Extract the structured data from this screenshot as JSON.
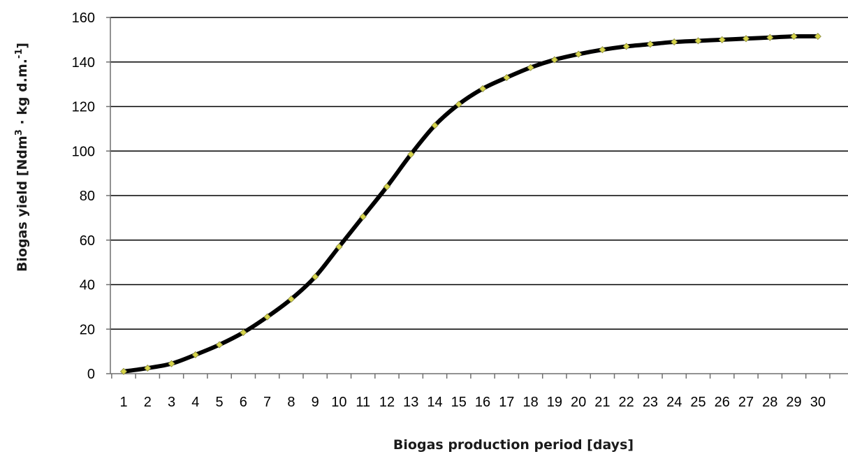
{
  "chart_data": {
    "type": "line",
    "title": "",
    "xlabel": "Biogas production period [days]",
    "ylabel": {
      "part1": "Biogas yield [Ndm",
      "sup1": "3",
      "part2": " · kg d.m.",
      "sup2": "-1",
      "part3": "]"
    },
    "x": [
      1,
      2,
      3,
      4,
      5,
      6,
      7,
      8,
      9,
      10,
      11,
      12,
      13,
      14,
      15,
      16,
      17,
      18,
      19,
      20,
      21,
      22,
      23,
      24,
      25,
      26,
      27,
      28,
      29,
      30
    ],
    "series": [
      {
        "values": [
          1,
          2.5,
          4.5,
          8.5,
          13,
          18.5,
          25.5,
          33.5,
          43.5,
          57,
          70.5,
          84,
          98.5,
          111.5,
          121,
          128,
          133,
          137.5,
          141,
          143.5,
          145.5,
          147,
          148,
          149,
          149.5,
          150,
          150.5,
          151,
          151.5,
          151.5
        ],
        "line_color": "#000000",
        "marker_color": "#d6d44a"
      }
    ],
    "ylim": [
      0,
      160
    ],
    "yticks": [
      0,
      20,
      40,
      60,
      80,
      100,
      120,
      140,
      160
    ],
    "xticks": [
      "1",
      "2",
      "3",
      "4",
      "5",
      "6",
      "7",
      "8",
      "9",
      "10",
      "11",
      "12",
      "13",
      "14",
      "15",
      "16",
      "17",
      "18",
      "19",
      "20",
      "21",
      "22",
      "23",
      "24",
      "25",
      "26",
      "27",
      "28",
      "29",
      "30"
    ],
    "grid": true,
    "legend": "none",
    "colors": {
      "grid": "#000000",
      "axis": "#6f6f6f",
      "line": "#000000",
      "marker_fill": "#d6d44a",
      "marker_stroke": "#8a8a40"
    }
  }
}
